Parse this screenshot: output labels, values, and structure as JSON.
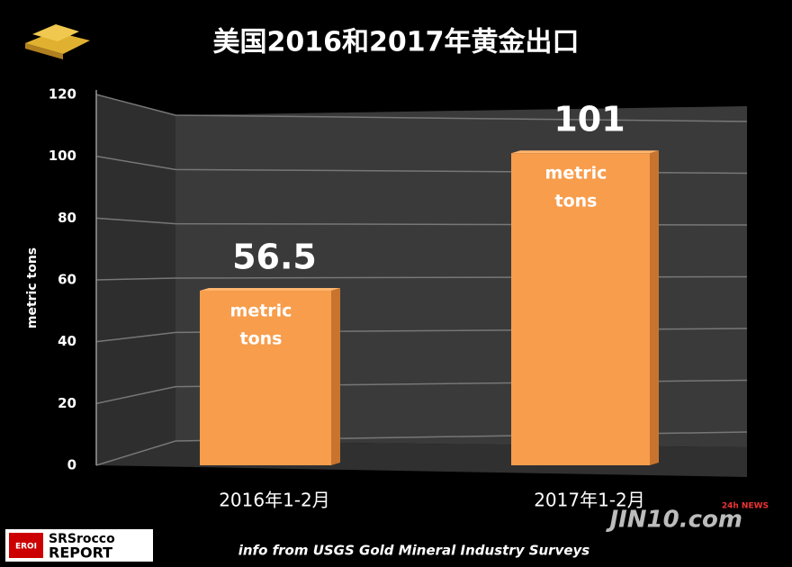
{
  "chart_data": {
    "type": "bar",
    "title": "美国2016和2017年黄金出口",
    "y_axis_label": "metric tons",
    "categories": [
      "2016年1-2月",
      "2017年1-2月"
    ],
    "values": [
      56.5,
      101
    ],
    "color": "#f79d4c",
    "bar_label_lines": [
      "metric",
      "tons"
    ],
    "ylim": [
      0,
      120
    ],
    "yticks": [
      0,
      20,
      40,
      60,
      80,
      100,
      120
    ],
    "grid": true,
    "source": "info from USGS Gold Mineral Industry Surveys",
    "logos": {
      "srsrocco_top": "SRSrocco",
      "srsrocco_bottom": "REPORT",
      "eroi": "EROI",
      "jin10": "JIN10.com",
      "news": "24h NEWS"
    }
  }
}
